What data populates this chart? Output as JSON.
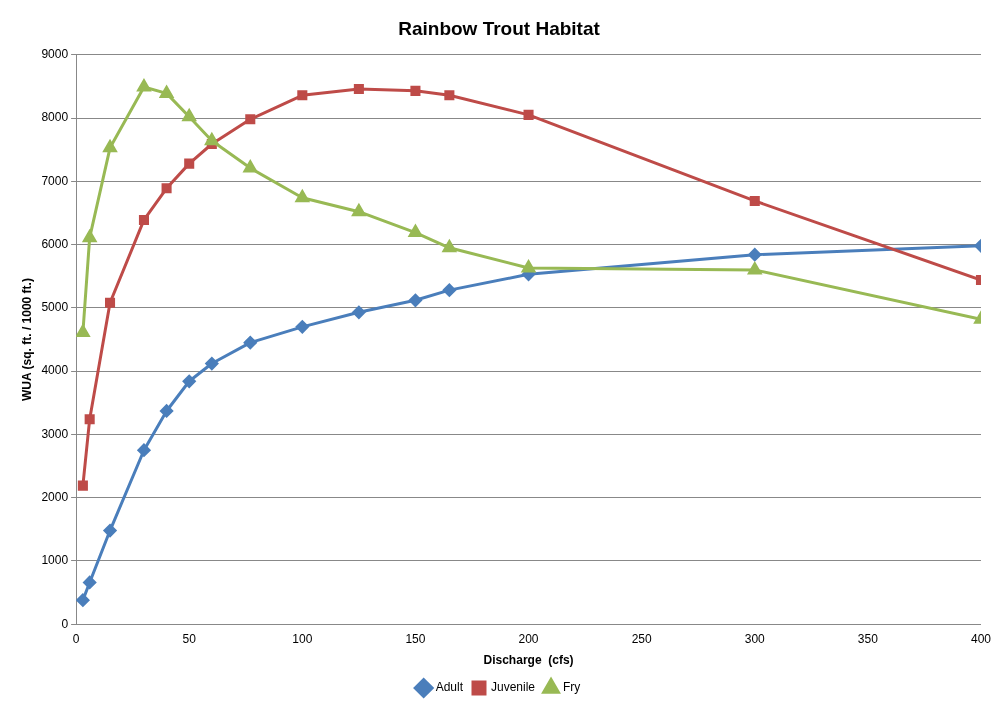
{
  "chart_data": {
    "type": "line",
    "title": "Rainbow Trout Habitat",
    "xlabel": "Discharge  (cfs)",
    "ylabel": "WUA (sq. ft. / 1000 ft.)",
    "x": [
      3,
      6,
      15,
      30,
      40,
      50,
      60,
      77,
      100,
      125,
      150,
      165,
      200,
      300,
      400
    ],
    "series": [
      {
        "name": "Adult",
        "color": "#4a7ebb",
        "marker": "diamond",
        "values": [
          380,
          660,
          1480,
          2750,
          3370,
          3840,
          4120,
          4450,
          4700,
          4930,
          5120,
          5280,
          5530,
          5840,
          5980
        ]
      },
      {
        "name": "Juvenile",
        "color": "#be4b48",
        "marker": "square",
        "values": [
          2190,
          3240,
          5080,
          6390,
          6890,
          7280,
          7590,
          7980,
          8360,
          8460,
          8430,
          8360,
          8050,
          6690,
          5440
        ]
      },
      {
        "name": "Fry",
        "color": "#98b954",
        "marker": "triangle",
        "values": [
          4610,
          6110,
          7530,
          8490,
          8390,
          8020,
          7640,
          7210,
          6740,
          6520,
          6190,
          5950,
          5630,
          5600,
          4820
        ]
      }
    ],
    "xlim": [
      0,
      400
    ],
    "xticks": [
      0,
      50,
      100,
      150,
      200,
      250,
      300,
      350,
      400
    ],
    "ylim": [
      0,
      9000
    ],
    "yticks": [
      0,
      1000,
      2000,
      3000,
      4000,
      5000,
      6000,
      7000,
      8000,
      9000
    ],
    "grid": "y",
    "legend": "bottom",
    "line_style": "solid"
  }
}
